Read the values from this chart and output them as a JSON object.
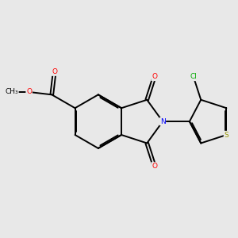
{
  "background_color": "#e8e8e8",
  "figsize": [
    3.0,
    3.0
  ],
  "dpi": 100,
  "atom_colors": {
    "O": "#ff0000",
    "N": "#0000ff",
    "S": "#999900",
    "Cl": "#00aa00",
    "C": "#000000"
  },
  "lw": 1.4,
  "fs": 6.5
}
